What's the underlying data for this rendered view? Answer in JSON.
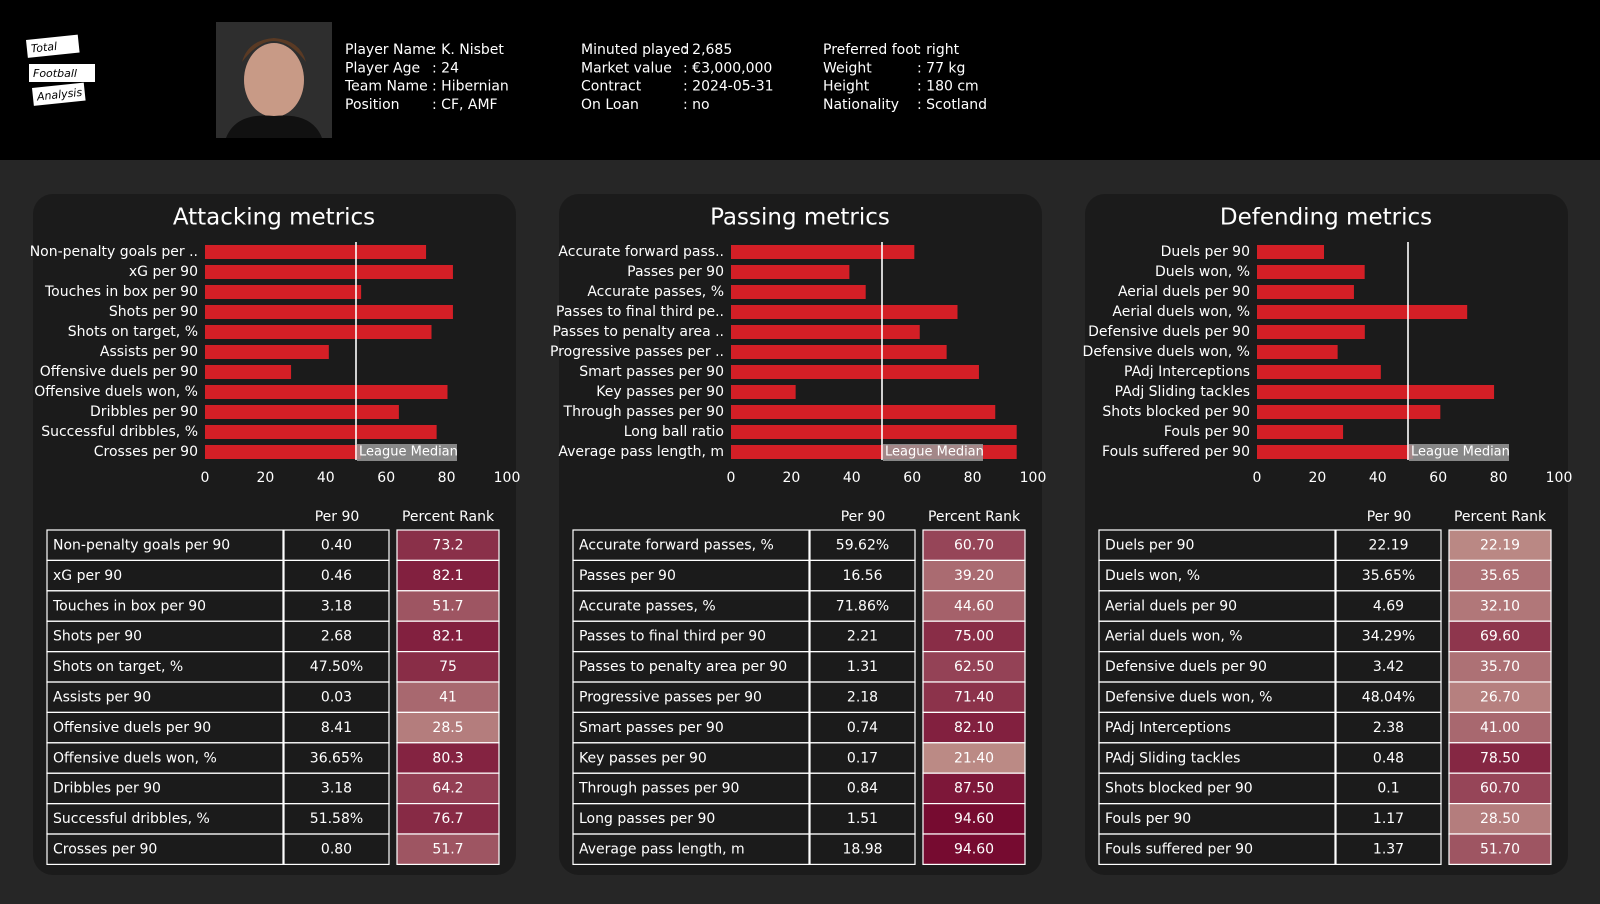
{
  "header": {
    "logo": [
      "Total",
      "Football",
      "Analysis"
    ],
    "info": [
      [
        {
          "label": "Player Name",
          "value": ": K. Nisbet"
        },
        {
          "label": "Player Age",
          "value": ": 24"
        },
        {
          "label": "Team Name",
          "value": ": Hibernian"
        },
        {
          "label": "Position",
          "value": ": CF, AMF"
        }
      ],
      [
        {
          "label": "Minuted played",
          "value": ": 2,685"
        },
        {
          "label": "Market value",
          "value": ": €3,000,000"
        },
        {
          "label": "Contract",
          "value": ": 2024-05-31"
        },
        {
          "label": "On Loan",
          "value": ": no"
        }
      ],
      [
        {
          "label": "Preferred foot",
          "value": ": right"
        },
        {
          "label": "Weight",
          "value": ": 77 kg"
        },
        {
          "label": "Height",
          "value": ": 180 cm"
        },
        {
          "label": "Nationality",
          "value": ": Scotland"
        }
      ]
    ]
  },
  "chart_data": [
    {
      "type": "bar",
      "orientation": "horizontal",
      "title": "Attacking metrics",
      "categories": [
        "Non-penalty goals per ..",
        "xG per 90",
        "Touches in box per 90",
        "Shots per 90",
        "Shots on target, %",
        "Assists per 90",
        "Offensive duels per 90",
        "Offensive duels won, %",
        "Dribbles per 90",
        "Successful dribbles, %",
        "Crosses per 90"
      ],
      "values": [
        73.2,
        82.1,
        51.7,
        82.1,
        75,
        41,
        28.5,
        80.3,
        64.2,
        76.7,
        51.7
      ],
      "color": "#d41f26",
      "xlim": [
        0,
        100
      ],
      "xticks": [
        0,
        20,
        40,
        60,
        80,
        100
      ],
      "reference_line": {
        "value": 50,
        "label": "League Median"
      }
    },
    {
      "type": "bar",
      "orientation": "horizontal",
      "title": "Passing metrics",
      "categories": [
        "Accurate forward pass..",
        "Passes per 90",
        "Accurate passes, %",
        "Passes to final third pe..",
        "Passes to penalty area ..",
        "Progressive passes per ..",
        "Smart passes per 90",
        "Key passes per 90",
        "Through passes per 90",
        "Long ball ratio",
        "Average pass length, m"
      ],
      "values": [
        60.7,
        39.2,
        44.6,
        75,
        62.5,
        71.4,
        82.1,
        21.4,
        87.5,
        94.6,
        94.6
      ],
      "color": "#d41f26",
      "xlim": [
        0,
        100
      ],
      "xticks": [
        0,
        20,
        40,
        60,
        80,
        100
      ],
      "reference_line": {
        "value": 50,
        "label": "League Median"
      }
    },
    {
      "type": "bar",
      "orientation": "horizontal",
      "title": "Defending metrics",
      "categories": [
        "Duels per 90",
        "Duels won, %",
        "Aerial duels per 90",
        "Aerial duels won, %",
        "Defensive duels per 90",
        "Defensive duels won, %",
        "PAdj Interceptions",
        "PAdj Sliding tackles",
        "Shots blocked per 90",
        "Fouls per 90",
        "Fouls suffered per 90"
      ],
      "values": [
        22.19,
        35.65,
        32.1,
        69.6,
        35.7,
        26.7,
        41,
        78.5,
        60.7,
        28.5,
        51.7
      ],
      "color": "#d41f26",
      "xlim": [
        0,
        100
      ],
      "xticks": [
        0,
        20,
        40,
        60,
        80,
        100
      ],
      "reference_line": {
        "value": 50,
        "label": "League Median"
      }
    }
  ],
  "tables": [
    {
      "columns": [
        "Per 90",
        "Percent Rank"
      ],
      "rows": [
        [
          "Non-penalty goals per 90",
          "0.40",
          "73.2"
        ],
        [
          "xG per 90",
          "0.46",
          "82.1"
        ],
        [
          "Touches in box per 90",
          "3.18",
          "51.7"
        ],
        [
          "Shots per 90",
          "2.68",
          "82.1"
        ],
        [
          "Shots on target, %",
          "47.50%",
          "75"
        ],
        [
          "Assists per 90",
          "0.03",
          "41"
        ],
        [
          "Offensive duels per 90",
          "8.41",
          "28.5"
        ],
        [
          "Offensive duels won, %",
          "36.65%",
          "80.3"
        ],
        [
          "Dribbles per 90",
          "3.18",
          "64.2"
        ],
        [
          "Successful dribbles, %",
          "51.58%",
          "76.7"
        ],
        [
          "Crosses per 90",
          "0.80",
          "51.7"
        ]
      ]
    },
    {
      "columns": [
        "Per 90",
        "Percent Rank"
      ],
      "rows": [
        [
          "Accurate forward passes, %",
          "59.62%",
          "60.70"
        ],
        [
          "Passes per 90",
          "16.56",
          "39.20"
        ],
        [
          "Accurate passes, %",
          "71.86%",
          "44.60"
        ],
        [
          "Passes to final third per 90",
          "2.21",
          "75.00"
        ],
        [
          "Passes to penalty area per 90",
          "1.31",
          "62.50"
        ],
        [
          "Progressive passes per 90",
          "2.18",
          "71.40"
        ],
        [
          "Smart passes per 90",
          "0.74",
          "82.10"
        ],
        [
          "Key passes per 90",
          "0.17",
          "21.40"
        ],
        [
          "Through passes per 90",
          "0.84",
          "87.50"
        ],
        [
          "Long passes per 90",
          "1.51",
          "94.60"
        ],
        [
          "Average pass length, m",
          "18.98",
          "94.60"
        ]
      ]
    },
    {
      "columns": [
        "Per 90",
        "Percent Rank"
      ],
      "rows": [
        [
          "Duels per 90",
          "22.19",
          "22.19"
        ],
        [
          "Duels won, %",
          "35.65%",
          "35.65"
        ],
        [
          "Aerial duels per 90",
          "4.69",
          "32.10"
        ],
        [
          "Aerial duels won, %",
          "34.29%",
          "69.60"
        ],
        [
          "Defensive duels per 90",
          "3.42",
          "35.70"
        ],
        [
          "Defensive duels won, %",
          "48.04%",
          "26.70"
        ],
        [
          "PAdj Interceptions",
          "2.38",
          "41.00"
        ],
        [
          "PAdj Sliding tackles",
          "0.48",
          "78.50"
        ],
        [
          "Shots blocked per 90",
          "0.1",
          "60.70"
        ],
        [
          "Fouls per 90",
          "1.17",
          "28.50"
        ],
        [
          "Fouls suffered per 90",
          "1.37",
          "51.70"
        ]
      ]
    }
  ]
}
